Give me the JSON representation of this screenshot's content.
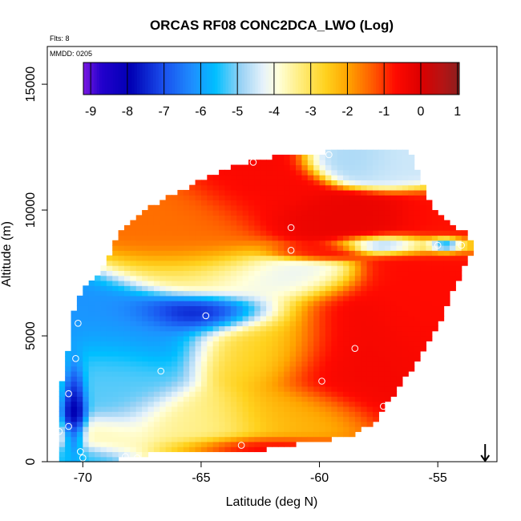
{
  "chart_data": {
    "type": "heatmap",
    "title": "ORCAS RF08 CONC2DCA_LWO (Log)",
    "annotations": {
      "flights": "Flts: 8",
      "date": "MMDD: 0205"
    },
    "xlabel": "Latitude (deg N)",
    "ylabel": "Altitude (m)",
    "xlim": [
      -71.5,
      -52.5
    ],
    "ylim": [
      0,
      16500
    ],
    "x_ticks": [
      -70,
      -65,
      -60,
      -55
    ],
    "x_tick_labels": [
      "-70",
      "-65",
      "-60",
      "-55"
    ],
    "y_ticks": [
      0,
      5000,
      10000,
      15000
    ],
    "y_tick_labels": [
      "0",
      "5000",
      "10000",
      "15000"
    ],
    "colorbar": {
      "min": -9.2,
      "max": 1.05,
      "ticks": [
        -9,
        -8,
        -7,
        -6,
        -5,
        -4,
        -3,
        -2,
        -1,
        0,
        1
      ],
      "tick_labels": [
        "-9",
        "-8",
        "-7",
        "-6",
        "-5",
        "-4",
        "-3",
        "-2",
        "-1",
        "0",
        "1"
      ],
      "stops": [
        {
          "v": -9.2,
          "color": "#7a19e0"
        },
        {
          "v": -8.7,
          "color": "#2200cc"
        },
        {
          "v": -7.9,
          "color": "#0000b4"
        },
        {
          "v": -7.0,
          "color": "#1a50ee"
        },
        {
          "v": -6.2,
          "color": "#1e90ff"
        },
        {
          "v": -5.6,
          "color": "#00bfff"
        },
        {
          "v": -4.9,
          "color": "#9ad2f5"
        },
        {
          "v": -4.3,
          "color": "#e6f2fb"
        },
        {
          "v": -3.9,
          "color": "#ffffdc"
        },
        {
          "v": -3.3,
          "color": "#ffee80"
        },
        {
          "v": -2.6,
          "color": "#ffd21e"
        },
        {
          "v": -2.0,
          "color": "#ffa500"
        },
        {
          "v": -1.3,
          "color": "#ff5a00"
        },
        {
          "v": -0.7,
          "color": "#ff0a00"
        },
        {
          "v": 0.0,
          "color": "#dc0000"
        },
        {
          "v": 0.6,
          "color": "#b41414"
        },
        {
          "v": 1.05,
          "color": "#8c1e1e"
        }
      ]
    },
    "domain_polygon": [
      [
        -71.1,
        0
      ],
      [
        -69.1,
        0
      ],
      [
        -67.2,
        300
      ],
      [
        -66.2,
        400
      ],
      [
        -62.3,
        500
      ],
      [
        -61.0,
        700
      ],
      [
        -58.7,
        1000
      ],
      [
        -57.7,
        1600
      ],
      [
        -56.0,
        3800
      ],
      [
        -54.8,
        5700
      ],
      [
        -54.3,
        7000
      ],
      [
        -53.4,
        8500
      ],
      [
        -53.7,
        9000
      ],
      [
        -55.2,
        10000
      ],
      [
        -56.2,
        12300
      ],
      [
        -57.9,
        12400
      ],
      [
        -61.5,
        12200
      ],
      [
        -63.0,
        11900
      ],
      [
        -64.3,
        11500
      ],
      [
        -67.0,
        10200
      ],
      [
        -68.5,
        9000
      ],
      [
        -69.3,
        7500
      ],
      [
        -70.3,
        6500
      ],
      [
        -70.5,
        5200
      ],
      [
        -70.7,
        4000
      ],
      [
        -71.1,
        2000
      ]
    ],
    "field_regions": [
      {
        "lat": -62.7,
        "alt": 11000,
        "value": -0.6,
        "sx": 1.8,
        "sy": 1300
      },
      {
        "lat": -64.8,
        "alt": 8800,
        "value": -1.5,
        "sx": 2.0,
        "sy": 1500
      },
      {
        "lat": -59.0,
        "alt": 9500,
        "value": -0.3,
        "sx": 2.8,
        "sy": 700
      },
      {
        "lat": -55.3,
        "alt": 9300,
        "value": -0.8,
        "sx": 1.2,
        "sy": 900
      },
      {
        "lat": -56.2,
        "alt": 11900,
        "value": -4.5,
        "sx": 2.0,
        "sy": 600
      },
      {
        "lat": -58.6,
        "alt": 12000,
        "value": -4.8,
        "sx": 1.3,
        "sy": 500
      },
      {
        "lat": -56.6,
        "alt": 8650,
        "value": -6.2,
        "sx": 1.7,
        "sy": 280
      },
      {
        "lat": -54.8,
        "alt": 8650,
        "value": -8.5,
        "sx": 0.5,
        "sy": 200
      },
      {
        "lat": -64.8,
        "alt": 5900,
        "value": -8.3,
        "sx": 2.0,
        "sy": 550
      },
      {
        "lat": -67.8,
        "alt": 5200,
        "value": -6.2,
        "sx": 2.6,
        "sy": 1100
      },
      {
        "lat": -68.6,
        "alt": 3300,
        "value": -5.2,
        "sx": 1.9,
        "sy": 1500
      },
      {
        "lat": -70.3,
        "alt": 2000,
        "value": -8.6,
        "sx": 0.35,
        "sy": 1400
      },
      {
        "lat": -62.6,
        "alt": 4800,
        "value": -2.7,
        "sx": 2.1,
        "sy": 1200
      },
      {
        "lat": -63.3,
        "alt": 7400,
        "value": -4.3,
        "sx": 2.7,
        "sy": 800
      },
      {
        "lat": -58.5,
        "alt": 4300,
        "value": -0.5,
        "sx": 2.4,
        "sy": 1700
      },
      {
        "lat": -56.0,
        "alt": 6500,
        "value": -0.7,
        "sx": 1.4,
        "sy": 1900
      },
      {
        "lat": -61.5,
        "alt": 1700,
        "value": -2.2,
        "sx": 2.1,
        "sy": 900
      },
      {
        "lat": -65.0,
        "alt": 1500,
        "value": -3.4,
        "sx": 2.3,
        "sy": 900
      },
      {
        "lat": -62.5,
        "alt": 600,
        "value": -0.2,
        "sx": 2.3,
        "sy": 330
      },
      {
        "lat": -69.2,
        "alt": 1000,
        "value": -3.6,
        "sx": 1.3,
        "sy": 600
      },
      {
        "lat": -70.0,
        "alt": 200,
        "value": -5.5,
        "sx": 1.2,
        "sy": 400
      },
      {
        "lat": -60.3,
        "alt": 8350,
        "value": -0.6,
        "sx": 1.6,
        "sy": 230
      }
    ],
    "markers": [
      {
        "lat": -62.8,
        "alt": 11900
      },
      {
        "lat": -59.6,
        "alt": 12200
      },
      {
        "lat": -55.8,
        "alt": 12300
      },
      {
        "lat": -61.2,
        "alt": 9300
      },
      {
        "lat": -61.2,
        "alt": 8400
      },
      {
        "lat": -55.0,
        "alt": 8600
      },
      {
        "lat": -54.0,
        "alt": 8600
      },
      {
        "lat": -64.8,
        "alt": 5800
      },
      {
        "lat": -70.2,
        "alt": 5500
      },
      {
        "lat": -70.3,
        "alt": 4100
      },
      {
        "lat": -66.7,
        "alt": 3600
      },
      {
        "lat": -58.5,
        "alt": 4500
      },
      {
        "lat": -59.9,
        "alt": 3200
      },
      {
        "lat": -57.3,
        "alt": 2200
      },
      {
        "lat": -70.6,
        "alt": 2700
      },
      {
        "lat": -70.6,
        "alt": 1400
      },
      {
        "lat": -71.0,
        "alt": 1200
      },
      {
        "lat": -70.1,
        "alt": 400
      },
      {
        "lat": -70.0,
        "alt": 150
      },
      {
        "lat": -68.2,
        "alt": 200
      },
      {
        "lat": -67.7,
        "alt": 150
      },
      {
        "lat": -63.3,
        "alt": 650
      },
      {
        "lat": -59.3,
        "alt": 700
      }
    ],
    "arrow": {
      "lat": -53.0,
      "alt_top": 700,
      "alt_bottom": 0
    }
  }
}
